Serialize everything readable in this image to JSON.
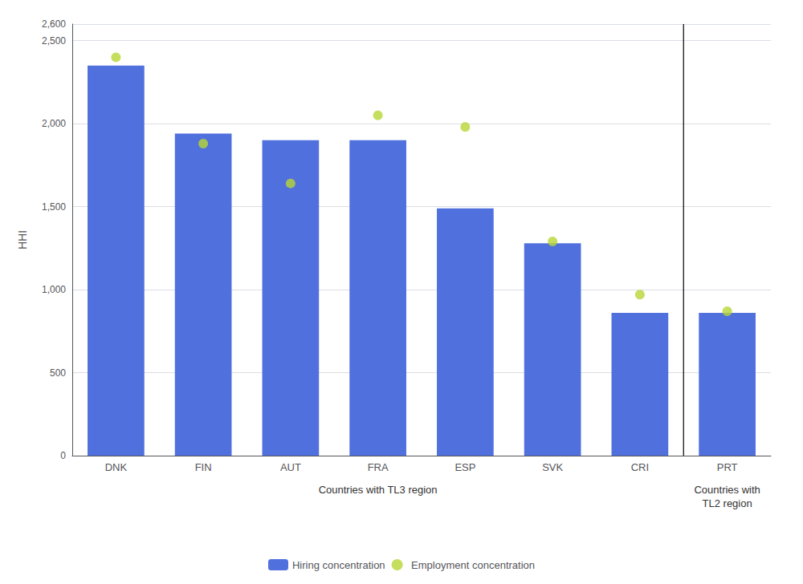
{
  "chart_data": {
    "type": "bar",
    "categories": [
      "DNK",
      "FIN",
      "AUT",
      "FRA",
      "ESP",
      "SVK",
      "CRI",
      "PRT"
    ],
    "series": [
      {
        "name": "Hiring concentration",
        "type": "bar",
        "values": [
          2350,
          1940,
          1900,
          1900,
          1490,
          1280,
          860,
          860
        ]
      },
      {
        "name": "Employment concentration",
        "type": "scatter",
        "marker": "circle",
        "values": [
          2400,
          1880,
          1640,
          2050,
          1980,
          1290,
          970,
          870
        ]
      }
    ],
    "ylabel": "HHI",
    "annotations": [
      {
        "text": "Countries with TL3 region",
        "categories": [
          "DNK",
          "FIN",
          "AUT",
          "FRA",
          "ESP",
          "SVK",
          "CRI"
        ]
      },
      {
        "text": "Countries with\nTL2 region",
        "categories": [
          "PRT"
        ]
      }
    ],
    "ylim": [
      0,
      2600
    ],
    "yticks": [
      0,
      500,
      1000,
      1500,
      2000,
      2500
    ],
    "grid": true,
    "legend": "bottom"
  }
}
